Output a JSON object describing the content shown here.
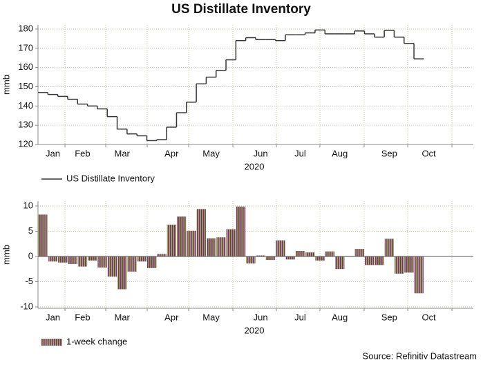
{
  "title": "US Distillate Inventory",
  "source": "Source: Refinitiv Datastream",
  "chart_data": [
    {
      "type": "step-line",
      "ylabel": "mmb",
      "xlabel": "2020",
      "categories": [
        null,
        "Jan",
        null,
        null,
        "Feb",
        null,
        null,
        null,
        "Mar",
        null,
        null,
        null,
        null,
        "Apr",
        null,
        null,
        null,
        "May",
        null,
        null,
        null,
        null,
        "Jun",
        null,
        null,
        null,
        "Jul",
        null,
        null,
        null,
        "Aug",
        null,
        null,
        null,
        null,
        "Sep",
        null,
        null,
        null,
        "Oct",
        null,
        null,
        null,
        null
      ],
      "series": [
        {
          "name": "US Distillate Inventory",
          "color": "#333333",
          "values": [
            147,
            146,
            145,
            143.5,
            141,
            140,
            138.5,
            134.5,
            128,
            125.5,
            124.5,
            122,
            122.5,
            129,
            136.5,
            142,
            151.5,
            155,
            158.5,
            164,
            174,
            175.5,
            174.5,
            174.5,
            174,
            177,
            177,
            178,
            179.5,
            177.5,
            177.5,
            177.5,
            179,
            177.5,
            175.8,
            179.3,
            175.8,
            172.5,
            164.5,
            null,
            null,
            null,
            null,
            null
          ]
        }
      ],
      "ylim": [
        120,
        180
      ],
      "yticks": [
        120,
        130,
        140,
        150,
        160,
        170,
        180
      ],
      "grid": true
    },
    {
      "type": "bar",
      "ylabel": "mmb",
      "xlabel": "2020",
      "categories": [
        null,
        "Jan",
        null,
        null,
        "Feb",
        null,
        null,
        null,
        "Mar",
        null,
        null,
        null,
        null,
        "Apr",
        null,
        null,
        null,
        "May",
        null,
        null,
        null,
        null,
        "Jun",
        null,
        null,
        null,
        "Jul",
        null,
        null,
        null,
        "Aug",
        null,
        null,
        null,
        null,
        "Sep",
        null,
        null,
        null,
        "Oct",
        null,
        null,
        null,
        null
      ],
      "series": [
        {
          "name": "1-week change",
          "color": "#6b3a5c",
          "values": [
            8.3,
            -1,
            -1.2,
            -1.5,
            -2,
            -0.8,
            -2.2,
            -4,
            -6.5,
            -3,
            -1,
            -2.3,
            0.5,
            6.3,
            7.9,
            5.1,
            9.4,
            3.6,
            3.8,
            5.4,
            9.9,
            -1.4,
            0.2,
            -0.7,
            3.2,
            -0.6,
            1.1,
            0.8,
            -0.8,
            1.0,
            -2.5,
            0.1,
            1.5,
            -1.7,
            -1.7,
            3.5,
            -3.4,
            -3.2,
            -7.3,
            null,
            null,
            null,
            null,
            null
          ]
        }
      ],
      "ylim": [
        -10,
        10
      ],
      "yticks": [
        -10,
        -5,
        0,
        5,
        10
      ],
      "grid": true
    }
  ]
}
